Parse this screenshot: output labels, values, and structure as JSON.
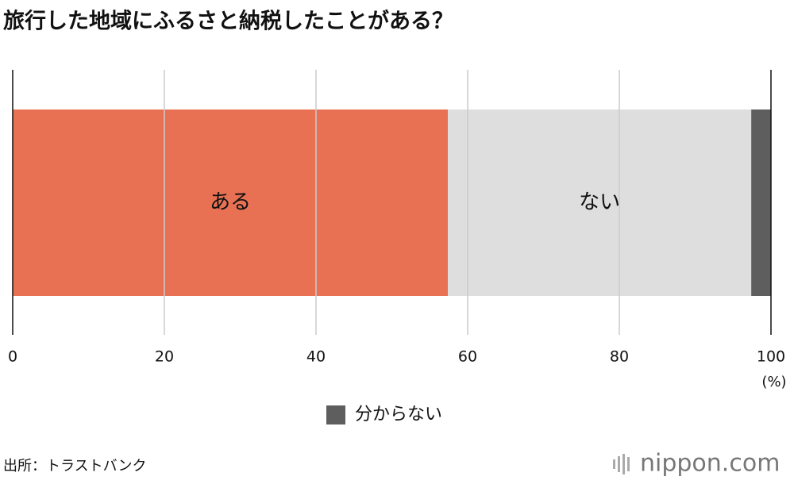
{
  "chart_data": {
    "type": "stacked-bar",
    "title": "旅行した地域にふるさと納税したことがある？",
    "categories": [
      null
    ],
    "series": [
      {
        "name": "ある",
        "color": "#e87154",
        "values": [
          57.4
        ]
      },
      {
        "name": "ない",
        "color": "#dedede",
        "values": [
          40.0
        ]
      },
      {
        "name": "分からない",
        "color": "#5e5e5e",
        "values": [
          2.6
        ]
      }
    ],
    "xlim": [
      0,
      100
    ],
    "xticks": [
      0,
      20,
      40,
      60,
      80,
      100
    ],
    "x_unit": "(%)",
    "grid": true,
    "source": "出所：トラストバンク",
    "brand": "nippon.com"
  }
}
